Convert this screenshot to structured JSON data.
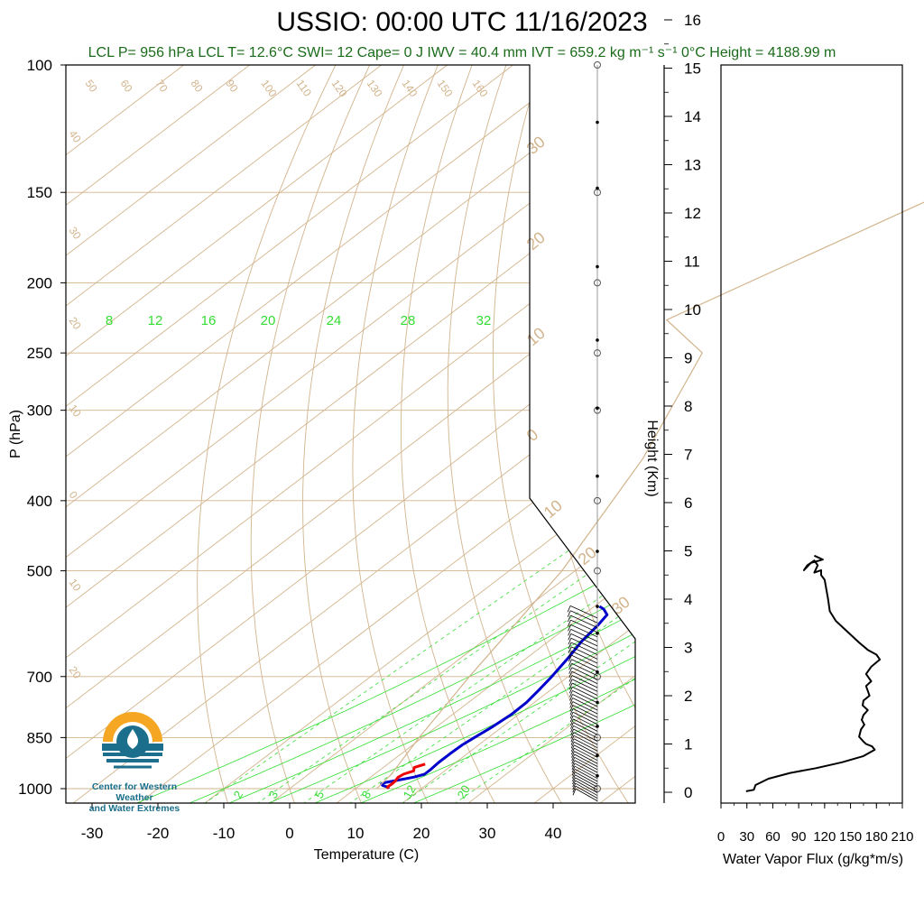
{
  "title": "USSIO: 00:00 UTC 11/16/2023",
  "subtitle": "LCL P= 956 hPa  LCL T= 12.6°C  SWI= 12  Cape= 0 J  IWV = 40.4 mm  IVT = 659.2 kg m⁻¹ s⁻¹  0°C Height = 4188.99 m",
  "logo": {
    "line1": "Center for Western Weather",
    "line2": "and Water Extremes",
    "colors": {
      "sun": "#f5a623",
      "water": "#1c6f8c"
    }
  },
  "colors": {
    "temperature": "#0000cc",
    "dewpoint": "#ee0000",
    "dry_adiabat": "#d2b48c",
    "mixing_ratio": "#33dd33",
    "isotherm": "#d2b48c",
    "flux": "#000000"
  },
  "chart_data": [
    {
      "type": "line",
      "title": "USSIO: 00:00 UTC 11/16/2023",
      "xlabel": "Temperature (C)",
      "ylabel": "P (hPa)",
      "xlim": [
        -34,
        52
      ],
      "ylim": [
        1050,
        100
      ],
      "y_scale": "log",
      "x_ticks": [
        "-30",
        "-20",
        "-10",
        "0",
        "10",
        "20",
        "30",
        "40"
      ],
      "y_ticks": [
        "100",
        "150",
        "200",
        "250",
        "300",
        "400",
        "500",
        "700",
        "850",
        "1000"
      ],
      "dry_adiabat_labels": [
        "50",
        "60",
        "70",
        "80",
        "90",
        "100",
        "110",
        "120",
        "130",
        "140",
        "150",
        "160"
      ],
      "isotherm_labels_left": [
        "40",
        "30",
        "20",
        "10",
        "0",
        "10",
        "20"
      ],
      "isotherm_labels_right": [
        "30",
        "20",
        "10",
        "0",
        "10",
        "20",
        "30"
      ],
      "mixing_ratio_top_labels": [
        "8",
        "12",
        "16",
        "20",
        "24",
        "28",
        "32"
      ],
      "mixing_ratio_bottom_labels": [
        "2",
        "3",
        "5",
        "8",
        "12",
        "20"
      ],
      "series": [
        {
          "name": "Temperature",
          "points": [
            [
              15.0,
              1000
            ],
            [
              14.6,
              995
            ],
            [
              13.5,
              990
            ],
            [
              13.0,
              985
            ],
            [
              13.4,
              980
            ],
            [
              15.0,
              972
            ],
            [
              16.6,
              964
            ],
            [
              17.6,
              955
            ],
            [
              17.6,
              940
            ],
            [
              17.4,
              920
            ],
            [
              17.4,
              895
            ],
            [
              17.5,
              870
            ],
            [
              18.0,
              845
            ],
            [
              18.5,
              820
            ],
            [
              18.9,
              790
            ],
            [
              18.8,
              760
            ],
            [
              18.2,
              730
            ],
            [
              17.5,
              700
            ],
            [
              16.3,
              660
            ],
            [
              15.0,
              625
            ],
            [
              14.3,
              595
            ],
            [
              13.6,
              575
            ],
            [
              12.0,
              565
            ],
            [
              10.8,
              560
            ]
          ]
        },
        {
          "name": "Dewpoint",
          "points": [
            [
              14.8,
              1000
            ],
            [
              14.5,
              993
            ],
            [
              14.6,
              985
            ],
            [
              14.5,
              975
            ],
            [
              14.2,
              965
            ],
            [
              14.4,
              955
            ],
            [
              15.3,
              945
            ],
            [
              14.7,
              935
            ],
            [
              15.7,
              925
            ]
          ]
        },
        {
          "name": "Parcel",
          "points": [
            [
              13.2,
              1000
            ],
            [
              12.6,
              956
            ],
            [
              9.5,
              850
            ],
            [
              5.0,
              700
            ],
            [
              -2.0,
              500
            ],
            [
              -12.0,
              350
            ],
            [
              -24.0,
              250
            ],
            [
              -36.0,
              225
            ],
            [
              -19.0,
              150
            ],
            [
              -4.0,
              100
            ]
          ]
        }
      ]
    },
    {
      "type": "line",
      "xlabel": "Water Vapor Flux (g/kg*m/s)",
      "ylabel": "Height (Km)",
      "xlim": [
        0,
        210
      ],
      "ylim": [
        -0.3,
        16.5
      ],
      "x_ticks": [
        "0",
        "30",
        "60",
        "90",
        "120",
        "150",
        "180",
        "210"
      ],
      "y_ticks": [
        "0",
        "1",
        "2",
        "3",
        "4",
        "5",
        "6",
        "7",
        "8",
        "9",
        "10",
        "11",
        "12",
        "13",
        "14",
        "15",
        "16"
      ],
      "series": [
        {
          "name": "Water Vapor Flux",
          "points": [
            [
              29,
              0.02
            ],
            [
              38,
              0.05
            ],
            [
              40,
              0.15
            ],
            [
              55,
              0.28
            ],
            [
              80,
              0.4
            ],
            [
              110,
              0.5
            ],
            [
              140,
              0.62
            ],
            [
              165,
              0.75
            ],
            [
              178,
              0.88
            ],
            [
              175,
              0.95
            ],
            [
              168,
              1.0
            ],
            [
              165,
              1.05
            ],
            [
              160,
              1.15
            ],
            [
              162,
              1.3
            ],
            [
              166,
              1.4
            ],
            [
              163,
              1.5
            ],
            [
              165,
              1.6
            ],
            [
              170,
              1.7
            ],
            [
              164,
              1.8
            ],
            [
              165,
              1.9
            ],
            [
              172,
              2.0
            ],
            [
              170,
              2.1
            ],
            [
              168,
              2.2
            ],
            [
              174,
              2.3
            ],
            [
              168,
              2.45
            ],
            [
              174,
              2.6
            ],
            [
              184,
              2.75
            ],
            [
              180,
              2.85
            ],
            [
              170,
              2.95
            ],
            [
              160,
              3.1
            ],
            [
              148,
              3.3
            ],
            [
              133,
              3.55
            ],
            [
              126,
              3.75
            ],
            [
              124,
              4.0
            ],
            [
              122,
              4.2
            ],
            [
              120,
              4.4
            ],
            [
              116,
              4.5
            ],
            [
              116,
              4.6
            ],
            [
              108,
              4.55
            ],
            [
              112,
              4.7
            ],
            [
              108,
              4.8
            ],
            [
              100,
              4.7
            ],
            [
              96,
              4.6
            ],
            [
              104,
              4.75
            ],
            [
              118,
              4.82
            ],
            [
              108,
              4.9
            ]
          ]
        }
      ]
    }
  ]
}
